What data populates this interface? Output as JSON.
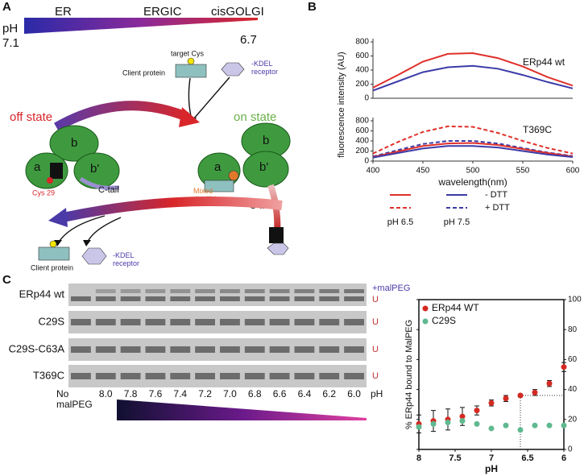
{
  "panel_labels": [
    "A",
    "B",
    "C"
  ],
  "diagram": {
    "compartments": [
      "ER",
      "ERGIC",
      "cisGOLGI"
    ],
    "ph_label": "pH",
    "ph_start": "7.1",
    "ph_end": "6.7",
    "target_cys": "target Cys",
    "client_protein_top": "Client protein",
    "kdel_top": "-KDEL receptor",
    "off_state": "off state",
    "on_state": "on state",
    "domains": [
      "b",
      "a",
      "b'"
    ],
    "cys29": "Cys 29",
    "c_tail": "C-tail",
    "mixed_disulfide": "Mixed disulfide",
    "client_protein_bottom": "Client protein",
    "kdel_bottom": "-KDEL receptor"
  },
  "gel": {
    "rows": [
      "ERp44 wt",
      "C29S",
      "C29S-C63A",
      "T369C"
    ],
    "band_labels": [
      "+malPEG",
      "U"
    ],
    "columns": [
      "No malPEG",
      "8.0",
      "7.8",
      "7.6",
      "7.4",
      "7.2",
      "7.0",
      "6.8",
      "6.6",
      "6.4",
      "6.2",
      "6.0"
    ],
    "ph_unit": "pH"
  },
  "chart_data": [
    {
      "type": "line",
      "ylabel": "fluorescence intensity (AU)",
      "annotation": "ERp44 wt",
      "x": [
        400,
        425,
        450,
        475,
        500,
        525,
        550,
        575,
        600
      ],
      "ylim": [
        0,
        800
      ],
      "yticks": [
        0,
        200,
        400,
        600,
        800
      ],
      "series": [
        {
          "color": "#e0302a",
          "dash": false,
          "values": [
            150,
            330,
            520,
            630,
            640,
            570,
            450,
            300,
            180
          ]
        },
        {
          "color": "#3b3ba8",
          "dash": false,
          "values": [
            110,
            240,
            370,
            440,
            460,
            420,
            330,
            230,
            140
          ]
        }
      ]
    },
    {
      "type": "line",
      "annotation": "T369C",
      "xlabel": "wavelength(nm)",
      "x": [
        400,
        425,
        450,
        475,
        500,
        525,
        550,
        575,
        600
      ],
      "xlim": [
        400,
        600
      ],
      "xticks": [
        400,
        450,
        500,
        550,
        600
      ],
      "ylim": [
        0,
        800
      ],
      "yticks": [
        0,
        200,
        400,
        600,
        800
      ],
      "series": [
        {
          "color": "#e0302a",
          "dash": true,
          "values": [
            150,
            380,
            580,
            690,
            680,
            560,
            400,
            260,
            150
          ]
        },
        {
          "color": "#3b3ba8",
          "dash": true,
          "values": [
            90,
            220,
            340,
            400,
            400,
            350,
            260,
            170,
            100
          ]
        },
        {
          "color": "#e0302a",
          "dash": false,
          "values": [
            80,
            190,
            300,
            350,
            360,
            320,
            240,
            160,
            90
          ]
        },
        {
          "color": "#3b3ba8",
          "dash": false,
          "values": [
            70,
            160,
            250,
            300,
            300,
            270,
            200,
            130,
            80
          ]
        }
      ],
      "legend_colors": [
        {
          "label": "pH 6.5",
          "color": "#e0302a"
        },
        {
          "label": "pH 7.5",
          "color": "#3b3ba8"
        }
      ],
      "legend_styles": [
        {
          "label": "- DTT",
          "dash": false
        },
        {
          "label": "+ DTT",
          "dash": true
        }
      ]
    },
    {
      "type": "scatter",
      "ylabel": "% ERp44 bound to MalPEG",
      "xlabel": "pH",
      "x": [
        8.0,
        7.8,
        7.6,
        7.4,
        7.2,
        7.0,
        6.8,
        6.6,
        6.4,
        6.2,
        6.0
      ],
      "xlim": [
        8,
        6
      ],
      "xticks": [
        8,
        7.5,
        7,
        6.5,
        6
      ],
      "ylim": [
        0,
        100
      ],
      "yticks": [
        0,
        20,
        40,
        60,
        80,
        100
      ],
      "legend": "upper left",
      "guides": {
        "x": 6.6,
        "y": 36
      },
      "series": [
        {
          "name": "ERp44 WT",
          "color": "#d42a22",
          "values": [
            17,
            19,
            20,
            22,
            26,
            31,
            34,
            36,
            38,
            44,
            55
          ],
          "errors": [
            6,
            7,
            7,
            6,
            3,
            2,
            2,
            1,
            2,
            2,
            3
          ]
        },
        {
          "name": "C29S",
          "color": "#5fb98f",
          "values": [
            15,
            17,
            18,
            19,
            17,
            14,
            16,
            13,
            16,
            16,
            16
          ]
        }
      ]
    }
  ]
}
